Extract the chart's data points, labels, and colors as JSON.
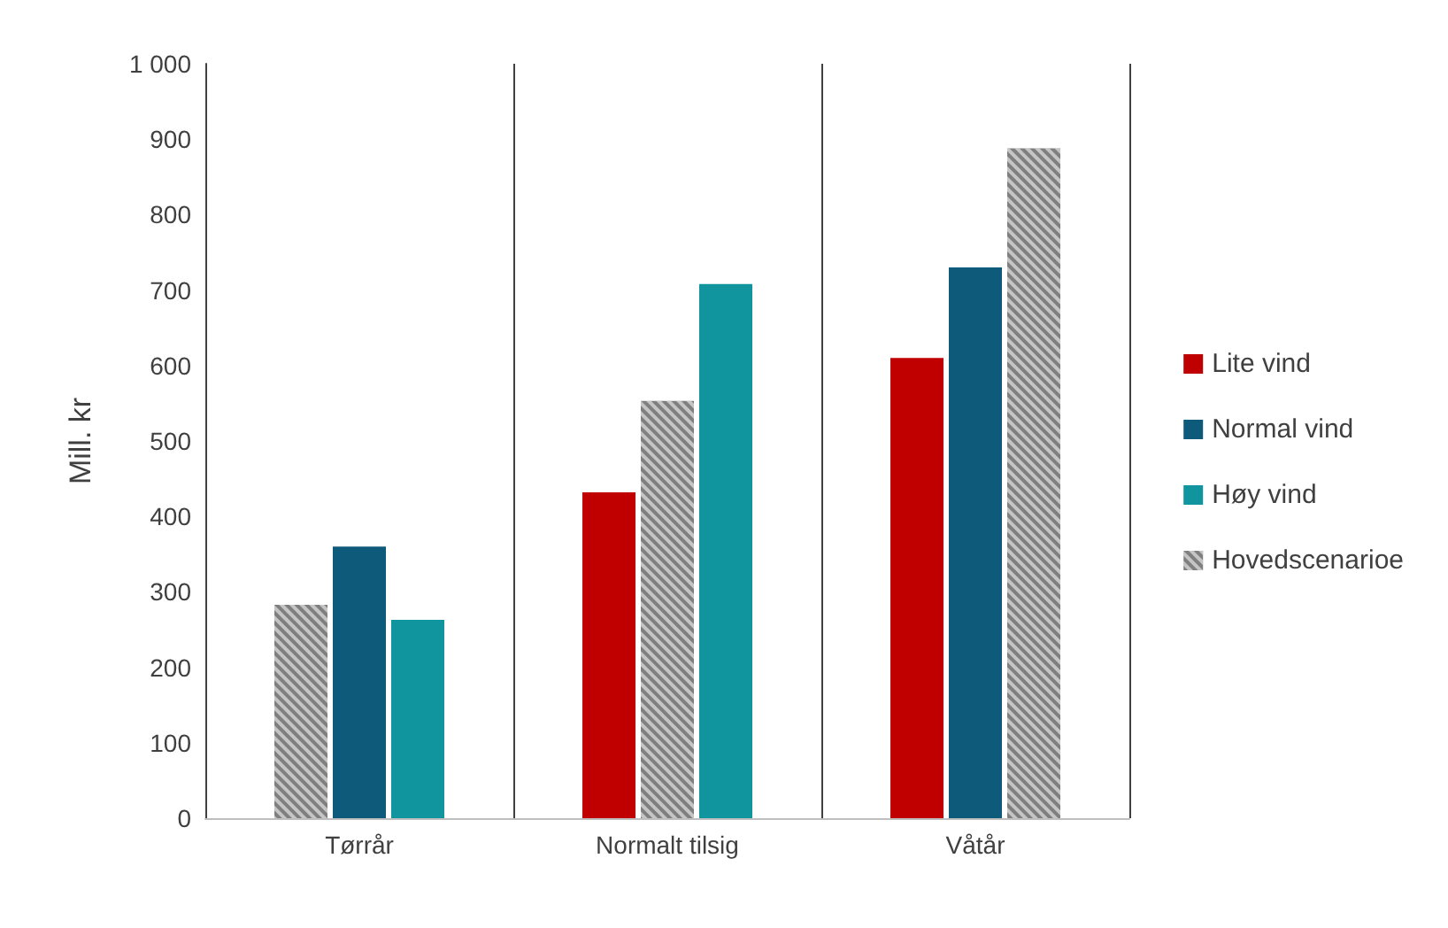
{
  "chart_data": {
    "type": "bar",
    "ylabel": "Mill. kr",
    "categories": [
      "Tørrår",
      "Normalt tilsig",
      "Våtår"
    ],
    "series": [
      {
        "name": "Lite vind",
        "color": "#c00000",
        "values": [
          null,
          432,
          610
        ]
      },
      {
        "name": "Normal vind",
        "color": "#0e5a7a",
        "values": [
          360,
          null,
          730
        ]
      },
      {
        "name": "Høy vind",
        "color": "#10959f",
        "values": [
          263,
          708,
          null
        ]
      },
      {
        "name": "Hovedscenarioe",
        "color": "#7f7f7f",
        "values": [
          283,
          553,
          888
        ]
      }
    ],
    "ylim": [
      0,
      1000
    ],
    "yticks": [
      0,
      100,
      200,
      300,
      400,
      500,
      600,
      700,
      800,
      900,
      {
        "value": 1000,
        "label": "1 000"
      }
    ],
    "grid": "x",
    "legend": "right"
  }
}
